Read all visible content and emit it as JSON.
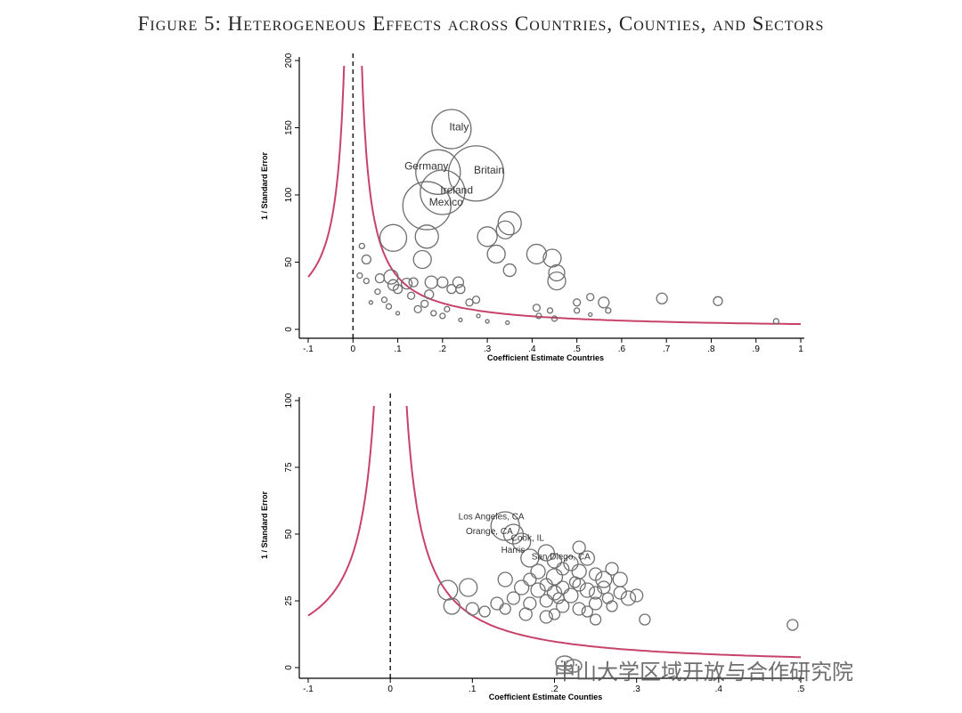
{
  "figure_title": "Figure 5: Heterogeneous Effects across Countries, Counties, and Sectors",
  "watermark": {
    "icon": "wechat-icon",
    "text": "中山大学区域开放与合作研究院"
  },
  "colors": {
    "funnel": "#c8436a",
    "bubble": "#6e6e6e",
    "axis": "#000000"
  },
  "chart_data": [
    {
      "type": "scatter",
      "id": "countries",
      "xlabel": "Coefficient Estimate Countries",
      "ylabel": "1 / Standard Error",
      "xlim": [
        -0.1,
        1
      ],
      "ylim": [
        0,
        200
      ],
      "xticks": [
        -0.1,
        0,
        0.1,
        0.2,
        0.3,
        0.4,
        0.5,
        0.6,
        0.7,
        0.8,
        0.9,
        1
      ],
      "xtick_labels": [
        "-.1",
        "0",
        ".1",
        ".2",
        ".3",
        ".4",
        ".5",
        ".6",
        ".7",
        ".8",
        ".9",
        "1"
      ],
      "yticks": [
        0,
        50,
        100,
        150,
        200
      ],
      "ytick_labels": [
        "0",
        "50",
        "100",
        "150",
        "200"
      ],
      "reference_line_x": 0,
      "funnel_constant": 3.9,
      "funnel_ymax": 196,
      "labels": [
        {
          "text": "Italy",
          "x": 0.215,
          "y": 148
        },
        {
          "text": "Germany",
          "x": 0.115,
          "y": 119
        },
        {
          "text": "Britain",
          "x": 0.27,
          "y": 116
        },
        {
          "text": "Ireland",
          "x": 0.195,
          "y": 101
        },
        {
          "text": "Mexico",
          "x": 0.17,
          "y": 92
        }
      ],
      "points": [
        {
          "x": 0.22,
          "y": 149,
          "size": 22
        },
        {
          "x": 0.19,
          "y": 117,
          "size": 25
        },
        {
          "x": 0.275,
          "y": 116,
          "size": 31
        },
        {
          "x": 0.2,
          "y": 102,
          "size": 25
        },
        {
          "x": 0.165,
          "y": 92,
          "size": 27
        },
        {
          "x": 0.09,
          "y": 68,
          "size": 15
        },
        {
          "x": 0.165,
          "y": 69,
          "size": 13
        },
        {
          "x": 0.3,
          "y": 69,
          "size": 11
        },
        {
          "x": 0.34,
          "y": 74,
          "size": 10
        },
        {
          "x": 0.35,
          "y": 79,
          "size": 13
        },
        {
          "x": 0.155,
          "y": 52,
          "size": 10
        },
        {
          "x": 0.32,
          "y": 56,
          "size": 10
        },
        {
          "x": 0.41,
          "y": 56,
          "size": 11
        },
        {
          "x": 0.445,
          "y": 53,
          "size": 10
        },
        {
          "x": 0.455,
          "y": 42,
          "size": 9
        },
        {
          "x": 0.35,
          "y": 44,
          "size": 7
        },
        {
          "x": 0.455,
          "y": 36,
          "size": 10
        },
        {
          "x": 0.03,
          "y": 52,
          "size": 5
        },
        {
          "x": 0.02,
          "y": 62,
          "size": 3
        },
        {
          "x": 0.015,
          "y": 40,
          "size": 3
        },
        {
          "x": 0.03,
          "y": 36,
          "size": 3
        },
        {
          "x": 0.06,
          "y": 38,
          "size": 5
        },
        {
          "x": 0.085,
          "y": 39,
          "size": 8
        },
        {
          "x": 0.09,
          "y": 33,
          "size": 6
        },
        {
          "x": 0.1,
          "y": 30,
          "size": 5
        },
        {
          "x": 0.12,
          "y": 34,
          "size": 6
        },
        {
          "x": 0.135,
          "y": 35,
          "size": 5
        },
        {
          "x": 0.175,
          "y": 35,
          "size": 7
        },
        {
          "x": 0.2,
          "y": 35,
          "size": 6
        },
        {
          "x": 0.22,
          "y": 30,
          "size": 5
        },
        {
          "x": 0.235,
          "y": 35,
          "size": 6
        },
        {
          "x": 0.24,
          "y": 30,
          "size": 5
        },
        {
          "x": 0.17,
          "y": 26,
          "size": 5
        },
        {
          "x": 0.13,
          "y": 25,
          "size": 4
        },
        {
          "x": 0.26,
          "y": 20,
          "size": 4
        },
        {
          "x": 0.275,
          "y": 22,
          "size": 4
        },
        {
          "x": 0.21,
          "y": 15,
          "size": 3
        },
        {
          "x": 0.18,
          "y": 12,
          "size": 3
        },
        {
          "x": 0.2,
          "y": 10,
          "size": 3
        },
        {
          "x": 0.145,
          "y": 15,
          "size": 4
        },
        {
          "x": 0.16,
          "y": 19,
          "size": 4
        },
        {
          "x": 0.07,
          "y": 22,
          "size": 3
        },
        {
          "x": 0.055,
          "y": 28,
          "size": 3
        },
        {
          "x": 0.08,
          "y": 17,
          "size": 3
        },
        {
          "x": 0.04,
          "y": 20,
          "size": 2
        },
        {
          "x": 0.1,
          "y": 12,
          "size": 2
        },
        {
          "x": 0.28,
          "y": 10,
          "size": 2
        },
        {
          "x": 0.41,
          "y": 16,
          "size": 4
        },
        {
          "x": 0.44,
          "y": 14,
          "size": 3
        },
        {
          "x": 0.415,
          "y": 10,
          "size": 3
        },
        {
          "x": 0.45,
          "y": 8,
          "size": 3
        },
        {
          "x": 0.5,
          "y": 20,
          "size": 4
        },
        {
          "x": 0.53,
          "y": 24,
          "size": 4
        },
        {
          "x": 0.56,
          "y": 20,
          "size": 6
        },
        {
          "x": 0.5,
          "y": 14,
          "size": 3
        },
        {
          "x": 0.53,
          "y": 11,
          "size": 2
        },
        {
          "x": 0.57,
          "y": 14,
          "size": 3
        },
        {
          "x": 0.69,
          "y": 23,
          "size": 6
        },
        {
          "x": 0.815,
          "y": 21,
          "size": 5
        },
        {
          "x": 0.945,
          "y": 6,
          "size": 3
        },
        {
          "x": 0.345,
          "y": 5,
          "size": 2
        },
        {
          "x": 0.3,
          "y": 6,
          "size": 2
        },
        {
          "x": 0.24,
          "y": 7,
          "size": 2
        }
      ]
    },
    {
      "type": "scatter",
      "id": "counties",
      "xlabel": "Coefficient Estimate Counties",
      "ylabel": "1 / Standard Error",
      "xlim": [
        -0.1,
        0.5
      ],
      "ylim": [
        0,
        100
      ],
      "xticks": [
        -0.1,
        0,
        0.1,
        0.2,
        0.3,
        0.4,
        0.5
      ],
      "xtick_labels": [
        "-.1",
        "0",
        ".1",
        ".2",
        ".3",
        ".4",
        ".5"
      ],
      "yticks": [
        0,
        25,
        50,
        75,
        100
      ],
      "ytick_labels": [
        "0",
        "25",
        "50",
        "75",
        "100"
      ],
      "reference_line_x": 0,
      "funnel_constant": 1.95,
      "funnel_ymax": 98,
      "labels": [
        {
          "text": "Los Angeles, CA",
          "x": 0.083,
          "y": 55.5
        },
        {
          "text": "Orange, CA",
          "x": 0.092,
          "y": 50
        },
        {
          "text": "Cook, IL",
          "x": 0.147,
          "y": 47.5
        },
        {
          "text": "Harris",
          "x": 0.135,
          "y": 43
        },
        {
          "text": "San Diego, CA",
          "x": 0.172,
          "y": 40.5
        }
      ],
      "points": [
        {
          "x": 0.14,
          "y": 53,
          "size": 16
        },
        {
          "x": 0.15,
          "y": 50,
          "size": 11
        },
        {
          "x": 0.16,
          "y": 47,
          "size": 10
        },
        {
          "x": 0.17,
          "y": 41,
          "size": 10
        },
        {
          "x": 0.19,
          "y": 43,
          "size": 9
        },
        {
          "x": 0.2,
          "y": 40,
          "size": 8
        },
        {
          "x": 0.22,
          "y": 39,
          "size": 8
        },
        {
          "x": 0.23,
          "y": 45,
          "size": 7
        },
        {
          "x": 0.24,
          "y": 41,
          "size": 8
        },
        {
          "x": 0.18,
          "y": 36,
          "size": 8
        },
        {
          "x": 0.2,
          "y": 34,
          "size": 9
        },
        {
          "x": 0.21,
          "y": 37,
          "size": 7
        },
        {
          "x": 0.23,
          "y": 36,
          "size": 8
        },
        {
          "x": 0.25,
          "y": 35,
          "size": 7
        },
        {
          "x": 0.26,
          "y": 33,
          "size": 9
        },
        {
          "x": 0.27,
          "y": 37,
          "size": 7
        },
        {
          "x": 0.14,
          "y": 33,
          "size": 8
        },
        {
          "x": 0.16,
          "y": 30,
          "size": 8
        },
        {
          "x": 0.17,
          "y": 33,
          "size": 7
        },
        {
          "x": 0.18,
          "y": 29,
          "size": 8
        },
        {
          "x": 0.19,
          "y": 31,
          "size": 7
        },
        {
          "x": 0.2,
          "y": 28,
          "size": 8
        },
        {
          "x": 0.21,
          "y": 30,
          "size": 7
        },
        {
          "x": 0.22,
          "y": 27,
          "size": 8
        },
        {
          "x": 0.23,
          "y": 31,
          "size": 7
        },
        {
          "x": 0.24,
          "y": 29,
          "size": 8
        },
        {
          "x": 0.25,
          "y": 28,
          "size": 7
        },
        {
          "x": 0.26,
          "y": 30,
          "size": 7
        },
        {
          "x": 0.28,
          "y": 28,
          "size": 7
        },
        {
          "x": 0.28,
          "y": 33,
          "size": 8
        },
        {
          "x": 0.29,
          "y": 26,
          "size": 8
        },
        {
          "x": 0.3,
          "y": 27,
          "size": 7
        },
        {
          "x": 0.15,
          "y": 26,
          "size": 7
        },
        {
          "x": 0.17,
          "y": 24,
          "size": 7
        },
        {
          "x": 0.19,
          "y": 25,
          "size": 7
        },
        {
          "x": 0.21,
          "y": 23,
          "size": 7
        },
        {
          "x": 0.23,
          "y": 22,
          "size": 7
        },
        {
          "x": 0.25,
          "y": 24,
          "size": 7
        },
        {
          "x": 0.27,
          "y": 23,
          "size": 6
        },
        {
          "x": 0.13,
          "y": 24,
          "size": 7
        },
        {
          "x": 0.14,
          "y": 22,
          "size": 6
        },
        {
          "x": 0.07,
          "y": 29,
          "size": 11
        },
        {
          "x": 0.095,
          "y": 30,
          "size": 10
        },
        {
          "x": 0.075,
          "y": 23,
          "size": 9
        },
        {
          "x": 0.1,
          "y": 22,
          "size": 7
        },
        {
          "x": 0.115,
          "y": 21,
          "size": 6
        },
        {
          "x": 0.165,
          "y": 20,
          "size": 7
        },
        {
          "x": 0.19,
          "y": 19,
          "size": 7
        },
        {
          "x": 0.2,
          "y": 20,
          "size": 6
        },
        {
          "x": 0.24,
          "y": 21,
          "size": 6
        },
        {
          "x": 0.25,
          "y": 18,
          "size": 6
        },
        {
          "x": 0.31,
          "y": 18,
          "size": 6
        },
        {
          "x": 0.49,
          "y": 16,
          "size": 6
        },
        {
          "x": 0.225,
          "y": 32,
          "size": 6
        },
        {
          "x": 0.205,
          "y": 26,
          "size": 6
        },
        {
          "x": 0.265,
          "y": 26,
          "size": 6
        }
      ]
    }
  ]
}
